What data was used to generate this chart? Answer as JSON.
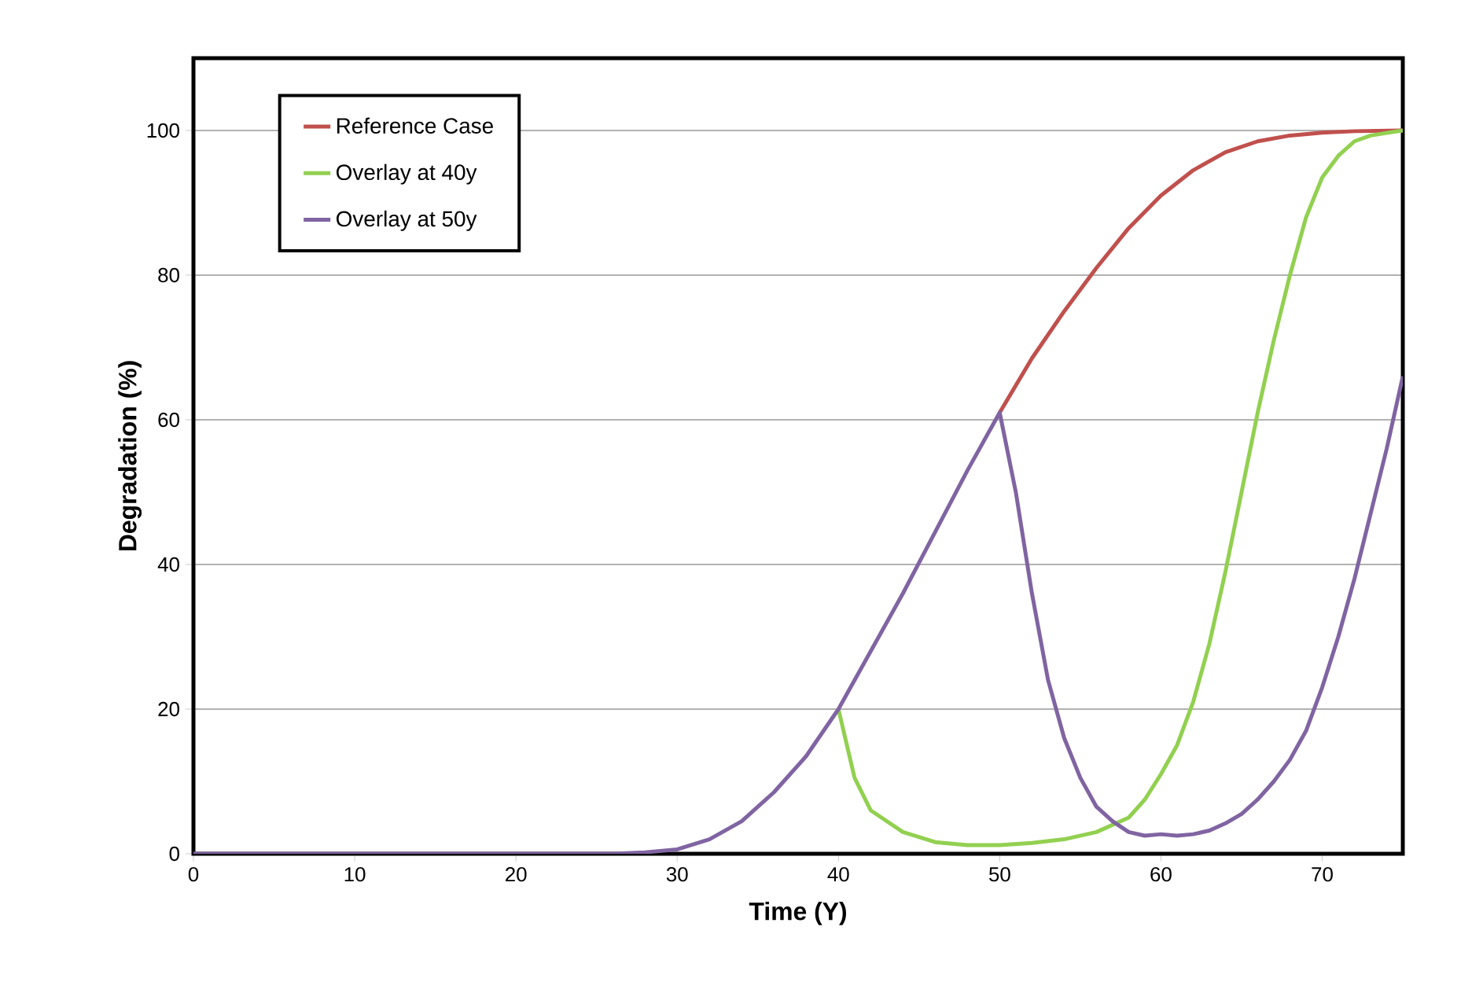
{
  "chart_data": {
    "type": "line",
    "xlabel": "Time (Y)",
    "ylabel": "Degradation (%)",
    "xlim": [
      0,
      75
    ],
    "ylim": [
      0,
      110
    ],
    "xticks": [
      0,
      10,
      20,
      30,
      40,
      50,
      60,
      70
    ],
    "yticks": [
      0,
      20,
      40,
      60,
      80,
      100
    ],
    "grid": "y",
    "legend": "top left",
    "marker": "none",
    "line_style": "solid",
    "series": [
      {
        "name": "Reference Case",
        "color": "#c0504d",
        "x": [
          50,
          52,
          54,
          56,
          58,
          60,
          62,
          64,
          66,
          68,
          70,
          72,
          75
        ],
        "values": [
          61,
          68.5,
          75,
          81,
          86.5,
          91,
          94.5,
          97,
          98.5,
          99.3,
          99.7,
          99.9,
          100
        ]
      },
      {
        "name": "Overlay at 40y",
        "color": "#92d050",
        "x": [
          40,
          41,
          42,
          44,
          46,
          48,
          50,
          52,
          54,
          56,
          58,
          59,
          60,
          61,
          62,
          63,
          64,
          65,
          66,
          67,
          68,
          69,
          70,
          71,
          72,
          73,
          75
        ],
        "values": [
          20,
          10.5,
          6,
          3,
          1.6,
          1.2,
          1.2,
          1.5,
          2,
          3,
          5,
          7.5,
          11,
          15,
          21,
          29,
          39,
          50,
          61,
          71,
          80,
          88,
          93.5,
          96.5,
          98.5,
          99.3,
          100
        ]
      },
      {
        "name": "Overlay at 50y",
        "color": "#8064a2",
        "x": [
          0,
          10,
          20,
          26,
          28,
          30,
          32,
          34,
          36,
          38,
          40,
          42,
          44,
          46,
          48,
          50,
          51,
          52,
          53,
          54,
          55,
          56,
          57,
          58,
          59,
          60,
          61,
          62,
          63,
          64,
          65,
          66,
          67,
          68,
          69,
          70,
          71,
          72,
          73,
          74,
          75
        ],
        "values": [
          0,
          0,
          0,
          0,
          0.2,
          0.6,
          2,
          4.5,
          8.5,
          13.5,
          20,
          28,
          36,
          44.5,
          53,
          61,
          50,
          36,
          24,
          16,
          10.5,
          6.5,
          4.5,
          3,
          2.5,
          2.7,
          2.5,
          2.7,
          3.2,
          4.2,
          5.5,
          7.5,
          10,
          13,
          17,
          23,
          30,
          38,
          47,
          56,
          66
        ]
      }
    ]
  }
}
